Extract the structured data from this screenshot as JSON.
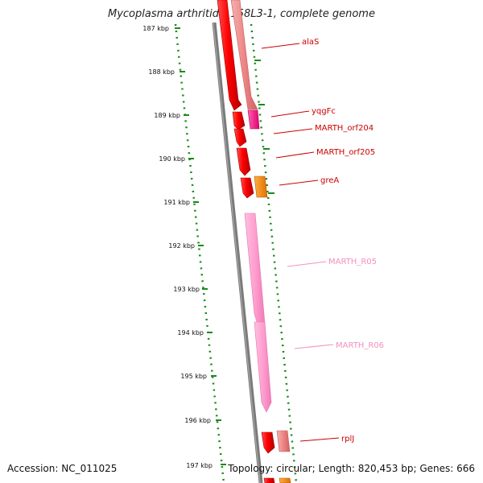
{
  "title": "Mycoplasma arthritidis 158L3-1, complete genome",
  "accession_text": "Accession: NC_011025",
  "summary_text": "Topology: circular; Length: 820,453 bp; Genes: 666",
  "ticks": [
    "187 kbp",
    "188 kbp",
    "189 kbp",
    "190 kbp",
    "191 kbp",
    "192 kbp",
    "193 kbp",
    "194 kbp",
    "195 kbp",
    "196 kbp",
    "197 kbp"
  ],
  "genes": [
    {
      "label": "alaS",
      "color": "#cc0000"
    },
    {
      "label": "yqgFc",
      "color": "#cc0000"
    },
    {
      "label": "MARTH_orf204",
      "color": "#cc0000"
    },
    {
      "label": "MARTH_orf205",
      "color": "#cc0000"
    },
    {
      "label": "greA",
      "color": "#cc0000"
    },
    {
      "label": "MARTH_R05",
      "color": "#f48fc0"
    },
    {
      "label": "MARTH_R06",
      "color": "#f48fc0"
    },
    {
      "label": "rplJ",
      "color": "#cc0000"
    }
  ],
  "colors": {
    "cds_red": "#ff1a1a",
    "cds_pale": "#f08080",
    "trna_magenta": "#ff1493",
    "orange": "#ff8c00",
    "rrna_pink": "#ff99cc",
    "backbone": "#7a7a7a",
    "tick_green": "#1a8a1a"
  }
}
